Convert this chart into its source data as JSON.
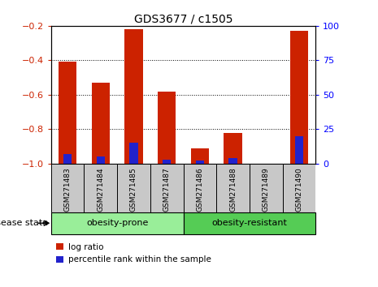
{
  "title": "GDS3677 / c1505",
  "samples": [
    "GSM271483",
    "GSM271484",
    "GSM271485",
    "GSM271487",
    "GSM271486",
    "GSM271488",
    "GSM271489",
    "GSM271490"
  ],
  "log_ratio": [
    -0.41,
    -0.53,
    -0.22,
    -0.58,
    -0.91,
    -0.82,
    -1.0,
    -0.23
  ],
  "percentile": [
    7,
    5,
    15,
    3,
    2,
    4,
    0,
    20
  ],
  "groups": [
    {
      "label": "obesity-prone",
      "start": 0,
      "end": 4,
      "color": "#99EE99"
    },
    {
      "label": "obesity-resistant",
      "start": 4,
      "end": 8,
      "color": "#55CC55"
    }
  ],
  "ylim": [
    -1.0,
    -0.2
  ],
  "yticks": [
    -1.0,
    -0.8,
    -0.6,
    -0.4,
    -0.2
  ],
  "percentile_ylim": [
    0,
    100
  ],
  "percentile_yticks": [
    0,
    25,
    50,
    75,
    100
  ],
  "bar_color_red": "#CC2200",
  "bar_color_blue": "#2222CC",
  "bar_width": 0.55,
  "blue_bar_width": 0.25,
  "background_gray": "#C8C8C8",
  "grid_color": "black",
  "legend_red_label": "log ratio",
  "legend_blue_label": "percentile rank within the sample",
  "disease_state_label": "disease state"
}
